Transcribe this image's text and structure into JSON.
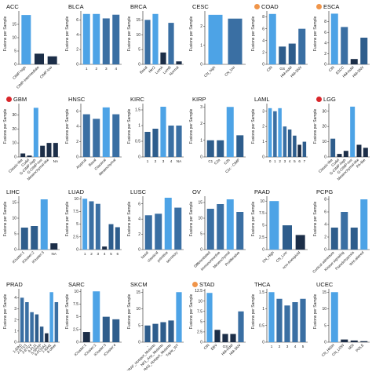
{
  "colors": {
    "light": "#4da3e6",
    "medium": "#2e5d8c",
    "dark": "#1c2e48",
    "mid": "#3a6fa3",
    "badge_orange": "#f0954a",
    "badge_red": "#d9262b"
  },
  "ylabel": "Fusions per Sample",
  "chart_data": [
    {
      "type": "bar",
      "title": "ACC",
      "badge": "",
      "categories": [
        "CIMP-high",
        "CIMP-intermediate",
        "CIMP-low"
      ],
      "values": [
        18.5,
        4,
        3
      ],
      "ylim": [
        0,
        20
      ],
      "yticks": [
        0,
        5,
        10,
        15
      ],
      "xlabel": "",
      "ylabel": "Fusions per Sample"
    },
    {
      "type": "bar",
      "title": "BLCA",
      "badge": "",
      "categories": [
        "1",
        "2",
        "3",
        "4"
      ],
      "values": [
        6.8,
        6.8,
        6.2,
        6.7
      ],
      "ylim": [
        0,
        7.2
      ],
      "yticks": [
        0,
        2,
        4,
        6
      ],
      "xlabel": "",
      "ylabel": "Fusions per Sample"
    },
    {
      "type": "bar",
      "title": "BRCA",
      "badge": "",
      "categories": [
        "Basal",
        "Her2",
        "LumA",
        "LumB",
        "Normal"
      ],
      "values": [
        15,
        17,
        4,
        14,
        1
      ],
      "ylim": [
        0,
        18
      ],
      "yticks": [
        0,
        5,
        10,
        15
      ],
      "xlabel": "",
      "ylabel": "Fusions per Sample"
    },
    {
      "type": "bar",
      "title": "CESC",
      "badge": "",
      "categories": [
        "CN_high",
        "CN_low"
      ],
      "values": [
        2.6,
        2.4
      ],
      "ylim": [
        0,
        2.8
      ],
      "yticks": [
        0,
        1,
        2
      ],
      "xlabel": "",
      "ylabel": "Fusions per Sample"
    },
    {
      "type": "bar",
      "title": "COAD",
      "badge": "orange",
      "categories": [
        "CIN",
        "GS",
        "HM-indel",
        "HM-SNV"
      ],
      "values": [
        8.5,
        3,
        3.5,
        6
      ],
      "ylim": [
        0,
        9
      ],
      "yticks": [
        0,
        2,
        4,
        6,
        8
      ],
      "xlabel": "",
      "ylabel": "Fusions per Sample"
    },
    {
      "type": "bar",
      "title": "ESCA",
      "badge": "orange",
      "categories": [
        "CIN",
        "ESCC",
        "HM-indel",
        "HM-SNV"
      ],
      "values": [
        9.5,
        7,
        1,
        5
      ],
      "ylim": [
        0,
        10
      ],
      "yticks": [
        0,
        2,
        4,
        6,
        8
      ],
      "xlabel": "",
      "ylabel": "Fusions per Sample"
    },
    {
      "type": "bar",
      "title": "GBM",
      "badge": "red",
      "categories": [
        "Classic-like",
        "Codel",
        "G-CIMP-high",
        "G-CIMP-low",
        "Mesenchymal-like",
        "NA"
      ],
      "values": [
        2.5,
        1,
        35,
        8,
        10,
        10
      ],
      "ylim": [
        0,
        38
      ],
      "yticks": [
        0,
        10,
        20,
        30
      ],
      "xlabel": "",
      "ylabel": "Fusions per Sample"
    },
    {
      "type": "bar",
      "title": "HNSC",
      "badge": "",
      "categories": [
        "Atypical",
        "Basal",
        "Classical",
        "Mesenchymal"
      ],
      "values": [
        5.6,
        5,
        6.5,
        5.6
      ],
      "ylim": [
        0,
        7
      ],
      "yticks": [
        0,
        2,
        4,
        6
      ],
      "xlabel": "",
      "ylabel": "Fusions per Sample"
    },
    {
      "type": "bar",
      "title": "KIRC",
      "badge": "",
      "categories": [
        "1",
        "2",
        "3",
        "4",
        "NA"
      ],
      "values": [
        0.8,
        0.9,
        1.6,
        1,
        1
      ],
      "ylim": [
        0,
        1.7
      ],
      "yticks": [
        0,
        0.5,
        1,
        1.5
      ],
      "xlabel": "",
      "ylabel": "Fusions per Sample"
    },
    {
      "type": "bar",
      "title": "KIRP",
      "badge": "",
      "categories": [
        "C1",
        "C2a",
        "C2b",
        "C2c - CIMP"
      ],
      "values": [
        1,
        1,
        3,
        1.3
      ],
      "ylim": [
        0,
        3.2
      ],
      "yticks": [
        0,
        1,
        2,
        3
      ],
      "xlabel": "",
      "ylabel": "Fusions per Sample"
    },
    {
      "type": "bar",
      "title": "LAML",
      "badge": "",
      "categories": [
        "0",
        "1",
        "2",
        "3",
        "4",
        "5",
        "6",
        "7"
      ],
      "values": [
        3.2,
        3,
        3.2,
        2,
        1.8,
        1.4,
        0.8,
        1
      ],
      "ylim": [
        0,
        3.5
      ],
      "yticks": [
        0,
        1,
        2,
        3
      ],
      "xlabel": "",
      "ylabel": "Fusions per Sample"
    },
    {
      "type": "bar",
      "title": "LGG",
      "badge": "red",
      "categories": [
        "Classic-like",
        "Codel",
        "G-CIMP-high",
        "G-CIMP-low",
        "Mesenchymal-like",
        "PA-like"
      ],
      "values": [
        12,
        2,
        4,
        33,
        8,
        6
      ],
      "ylim": [
        0,
        35
      ],
      "yticks": [
        0,
        10,
        20,
        30
      ],
      "xlabel": "",
      "ylabel": "Fusions per Sample"
    },
    {
      "type": "bar",
      "title": "LIHC",
      "badge": "",
      "categories": [
        "iCluster:1",
        "iCluster:2",
        "iCluster:3",
        "NA"
      ],
      "values": [
        7,
        7.5,
        16,
        2
      ],
      "ylim": [
        0,
        17
      ],
      "yticks": [
        0,
        5,
        10,
        15
      ],
      "xlabel": "",
      "ylabel": "Fusions per Sample"
    },
    {
      "type": "bar",
      "title": "LUAD",
      "badge": "",
      "categories": [
        "1",
        "2",
        "3",
        "4",
        "5",
        "6"
      ],
      "values": [
        10,
        9.5,
        9,
        0.6,
        5,
        4.4
      ],
      "ylim": [
        0,
        10.5
      ],
      "yticks": [
        0,
        2.5,
        5,
        7.5,
        10
      ],
      "xlabel": "",
      "ylabel": "Fusions per Sample"
    },
    {
      "type": "bar",
      "title": "LUSC",
      "badge": "",
      "categories": [
        "basal",
        "classical",
        "primitive",
        "secretory"
      ],
      "values": [
        4.5,
        4.7,
        6.8,
        5.5
      ],
      "ylim": [
        0,
        7
      ],
      "yticks": [
        0,
        2,
        4,
        6
      ],
      "xlabel": "",
      "ylabel": "Fusions per Sample"
    },
    {
      "type": "bar",
      "title": "OV",
      "badge": "",
      "categories": [
        "Differentiated",
        "Immunoreactive",
        "Mesenchymal",
        "Proliferative"
      ],
      "values": [
        13,
        14.5,
        16,
        12
      ],
      "ylim": [
        0,
        17
      ],
      "yticks": [
        0,
        5,
        10,
        15
      ],
      "xlabel": "",
      "ylabel": "Fusions per Sample"
    },
    {
      "type": "bar",
      "title": "PAAD",
      "badge": "",
      "categories": [
        "CN_High",
        "CN_Low",
        "non-Aneuploid"
      ],
      "values": [
        10,
        5,
        3
      ],
      "ylim": [
        0,
        11
      ],
      "yticks": [
        0,
        2.5,
        5,
        7.5,
        10
      ],
      "xlabel": "",
      "ylabel": "Fusions per Sample"
    },
    {
      "type": "bar",
      "title": "PCPG",
      "badge": "",
      "categories": [
        "Cortical admixture",
        "Kinase signaling",
        "Pseudohypoxia",
        "Wnt-altered"
      ],
      "values": [
        3.5,
        6,
        3.5,
        8
      ],
      "ylim": [
        0,
        8.5
      ],
      "yticks": [
        0,
        2,
        4,
        6,
        8
      ],
      "xlabel": "",
      "ylabel": "Fusions per Sample"
    },
    {
      "type": "bar",
      "title": "PRAD",
      "badge": "",
      "categories": [
        "1-ERG",
        "2-ETV1",
        "3-ETV4",
        "4-FLI1",
        "5-SPOP",
        "6-FOXA1",
        "7-IDH1",
        "8-other"
      ],
      "values": [
        4,
        3.6,
        2.7,
        2.5,
        1.4,
        0.8,
        4.5,
        3.6
      ],
      "ylim": [
        0,
        4.8
      ],
      "yticks": [
        0,
        1,
        2,
        3,
        4
      ],
      "xlabel": "",
      "ylabel": "Fusions per Sample"
    },
    {
      "type": "bar",
      "title": "SARC",
      "badge": "",
      "categories": [
        "iCluster:1",
        "iCluster:2",
        "iCluster:3",
        "iCluster:4"
      ],
      "values": [
        2,
        10,
        5,
        4.5
      ],
      "ylim": [
        0,
        10.5
      ],
      "yticks": [
        0,
        2.5,
        5,
        7.5,
        10
      ],
      "xlabel": "",
      "ylabel": "Fusions per Sample"
    },
    {
      "type": "bar",
      "title": "SKCM",
      "badge": "",
      "categories": [
        "-",
        "BRAF_Hotspot_Mutants",
        "NF1_Any_Mutants",
        "RAS_Hotspot_Mutants",
        "Triple_WT"
      ],
      "values": [
        5,
        5.5,
        6,
        6.5,
        15
      ],
      "ylim": [
        0,
        16
      ],
      "yticks": [
        0,
        5,
        10,
        15
      ],
      "xlabel": "",
      "ylabel": "Fusions per Sample"
    },
    {
      "type": "bar",
      "title": "STAD",
      "badge": "orange",
      "categories": [
        "CIN",
        "EBV",
        "GS",
        "HM-indel",
        "HM-SNV"
      ],
      "values": [
        12,
        3,
        2,
        2,
        7.5
      ],
      "ylim": [
        0,
        13
      ],
      "yticks": [
        0,
        2.5,
        5,
        7.5,
        10,
        12.5
      ],
      "xlabel": "",
      "ylabel": "Fusions per Sample"
    },
    {
      "type": "bar",
      "title": "THCA",
      "badge": "",
      "categories": [
        "1",
        "2",
        "3",
        "4",
        "5"
      ],
      "values": [
        1.5,
        1.3,
        1.1,
        1.2,
        1.3
      ],
      "ylim": [
        0,
        1.6
      ],
      "yticks": [
        0,
        0.5,
        1,
        1.5
      ],
      "xlabel": "",
      "ylabel": "Fusions per Sample"
    },
    {
      "type": "bar",
      "title": "UCEC",
      "badge": "",
      "categories": [
        "CN_HIGH",
        "CN_LOW",
        "MSI",
        "POLE"
      ],
      "values": [
        15,
        0.8,
        0.5,
        0.3
      ],
      "ylim": [
        0,
        16
      ],
      "yticks": [
        0,
        5,
        10,
        15
      ],
      "xlabel": "",
      "ylabel": "Fusions per Sample"
    }
  ]
}
